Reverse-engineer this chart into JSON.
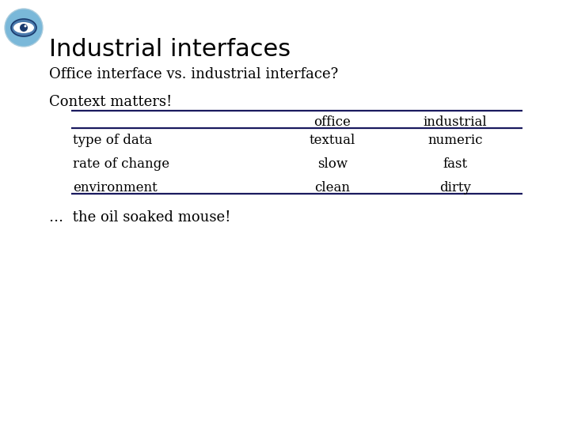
{
  "title": "Industrial interfaces",
  "subtitle1": "Office interface vs. industrial interface?",
  "subtitle2": "Context matters!",
  "footer": "…  the oil soaked mouse!",
  "table_headers": [
    "",
    "office",
    "industrial"
  ],
  "table_rows": [
    [
      "type of data",
      "textual",
      "numeric"
    ],
    [
      "rate of change",
      "slow",
      "fast"
    ],
    [
      "environment",
      "clean",
      "dirty"
    ]
  ],
  "background_color": "#ffffff",
  "title_color": "#000000",
  "text_color": "#000000",
  "table_line_color": "#1a1a5e",
  "title_fontsize": 22,
  "body_fontsize": 13,
  "table_fontsize": 12,
  "eye_color_outer": "#7ab8d9",
  "eye_color_inner": "#1a3a6e",
  "eye_iris": "#4a7aad"
}
